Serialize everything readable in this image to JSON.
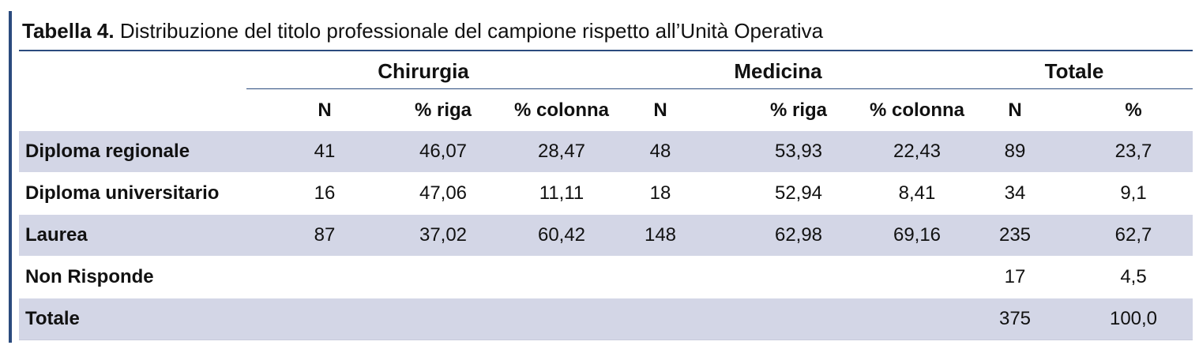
{
  "caption": {
    "label": "Tabella 4.",
    "text": "Distribuzione del titolo professionale del campione rispetto all’Unità Operativa"
  },
  "table": {
    "groups": [
      "Chirurgia",
      "Medicina",
      "Totale"
    ],
    "subheaders": [
      "N",
      "% riga",
      "% colonna",
      "N",
      "% riga",
      "% colonna",
      "N",
      "%"
    ],
    "rows": [
      {
        "label": "Diploma regionale",
        "cells": [
          "41",
          "46,07",
          "28,47",
          "48",
          "53,93",
          "22,43",
          "89",
          "23,7"
        ]
      },
      {
        "label": "Diploma universitario",
        "cells": [
          "16",
          "47,06",
          "11,11",
          "18",
          "52,94",
          "8,41",
          "34",
          "9,1"
        ]
      },
      {
        "label": "Laurea",
        "cells": [
          "87",
          "37,02",
          "60,42",
          "148",
          "62,98",
          "69,16",
          "235",
          "62,7"
        ]
      },
      {
        "label": "Non Risponde",
        "cells": [
          "",
          "",
          "",
          "",
          "",
          "",
          "17",
          "4,5"
        ]
      },
      {
        "label": "Totale",
        "cells": [
          "",
          "",
          "",
          "",
          "",
          "",
          "375",
          "100,0"
        ]
      }
    ]
  }
}
